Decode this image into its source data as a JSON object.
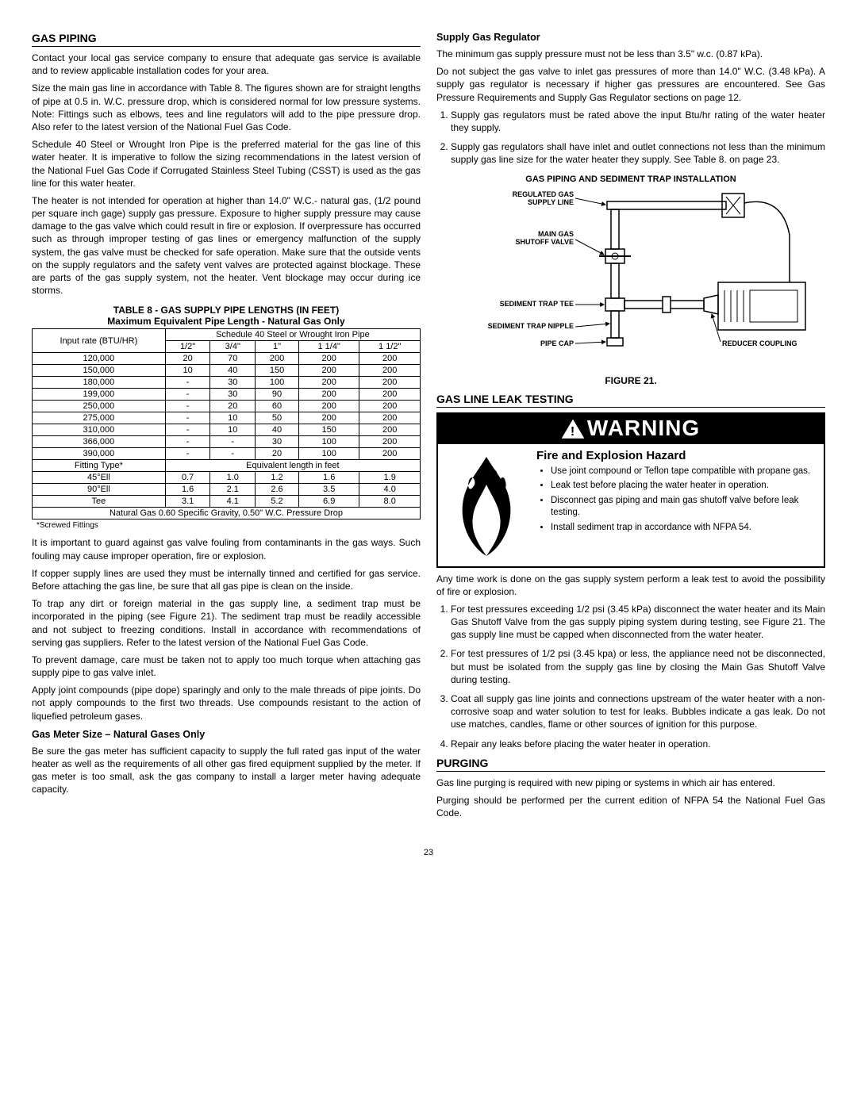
{
  "left": {
    "h_gas_piping": "GAS PIPING",
    "p1": "Contact your local gas service company to ensure that adequate gas service is available and to review applicable installation codes for your area.",
    "p2": "Size the main gas line in accordance with Table 8. The figures shown are for straight lengths of pipe at 0.5 in. W.C. pressure drop, which is considered normal for low pressure systems. Note: Fittings such as elbows, tees and line regulators will add to the pipe pressure drop. Also refer to the latest version of the National Fuel Gas Code.",
    "p3": "Schedule 40 Steel or Wrought Iron Pipe is the preferred material for the gas line of this water heater. It is imperative to follow the sizing recommendations in the latest version of the National Fuel Gas Code if Corrugated Stainless Steel Tubing (CSST) is used as the gas line for this water heater.",
    "p4": "The heater is not intended for operation at higher than 14.0\" W.C.- natural gas, (1/2 pound per square inch gage) supply gas pressure. Exposure to higher supply pressure may cause damage to the gas valve which could result in fire or explosion. If overpressure has occurred such as through improper testing of gas lines or emergency malfunction of the supply system, the gas valve must be checked for safe operation. Make sure that the outside vents on the supply regulators and the safety vent valves are protected against blockage. These are parts of the gas supply system, not the heater. Vent blockage may occur during ice storms.",
    "table_title1": "TABLE 8 - GAS SUPPLY PIPE LENGTHS (IN FEET)",
    "table_title2": "Maximum Equivalent Pipe Length - Natural Gas Only",
    "table": {
      "header1_left": "Input rate (BTU/HR)",
      "header1_right": "Schedule 40 Steel or Wrought Iron Pipe",
      "cols": [
        "1/2\"",
        "3/4\"",
        "1\"",
        "1 1/4\"",
        "1 1/2\""
      ],
      "rows": [
        [
          "120,000",
          "20",
          "70",
          "200",
          "200",
          "200"
        ],
        [
          "150,000",
          "10",
          "40",
          "150",
          "200",
          "200"
        ],
        [
          "180,000",
          "-",
          "30",
          "100",
          "200",
          "200"
        ],
        [
          "199,000",
          "-",
          "30",
          "90",
          "200",
          "200"
        ],
        [
          "250,000",
          "-",
          "20",
          "60",
          "200",
          "200"
        ],
        [
          "275,000",
          "-",
          "10",
          "50",
          "200",
          "200"
        ],
        [
          "310,000",
          "-",
          "10",
          "40",
          "150",
          "200"
        ],
        [
          "366,000",
          "-",
          "-",
          "30",
          "100",
          "200"
        ],
        [
          "390,000",
          "-",
          "-",
          "20",
          "100",
          "200"
        ]
      ],
      "fitting_header_left": "Fitting Type*",
      "fitting_header_right": "Equivalent length in feet",
      "fitting_rows": [
        [
          "45°Ell",
          "0.7",
          "1.0",
          "1.2",
          "1.6",
          "1.9"
        ],
        [
          "90°Ell",
          "1.6",
          "2.1",
          "2.6",
          "3.5",
          "4.0"
        ],
        [
          "Tee",
          "3.1",
          "4.1",
          "5.2",
          "6.9",
          "8.0"
        ]
      ],
      "footer": "Natural Gas 0.60 Specific Gravity, 0.50\" W.C. Pressure Drop"
    },
    "footnote": "*Screwed Fittings",
    "p5": "It is important to guard against gas valve fouling from contaminants in the gas ways. Such fouling may cause improper operation, fire or explosion.",
    "p6": "If copper supply lines are used they must be internally tinned and certified for gas service. Before attaching the gas line, be sure that all gas pipe is clean on the inside.",
    "p7": "To trap any dirt or foreign material in the gas supply line, a sediment trap must be incorporated in the piping (see Figure 21). The sediment trap must be readily accessible and not subject to freezing conditions. Install in accordance with recommendations of serving gas suppliers. Refer to the latest version of the National Fuel Gas Code.",
    "p8": "To prevent damage, care must be taken not to apply too much torque when attaching gas supply pipe to gas valve inlet.",
    "p9": "Apply joint compounds (pipe dope) sparingly and only to the male threads of pipe joints. Do not apply compounds to the first two threads. Use compounds resistant to the action of liquefied petroleum gases.",
    "h_gas_meter": "Gas Meter Size – Natural Gases Only",
    "p10": "Be sure the gas meter has sufficient capacity to supply the full rated gas input of the water heater as well as the requirements of all other gas fired equipment supplied by the meter. If gas meter is too small, ask the gas company to install a larger meter having adequate capacity."
  },
  "right": {
    "h_supply": "Supply Gas Regulator",
    "p1": "The minimum gas supply pressure must not be less than 3.5\" w.c. (0.87 kPa).",
    "p2": "Do not subject the gas valve to inlet gas pressures of more than 14.0\" W.C. (3.48 kPa). A supply gas regulator is necessary if higher gas pressures are encountered. See Gas Pressure Requirements and Supply Gas Regulator sections on page 12.",
    "ol1": {
      "i1": "Supply gas regulators must be rated above the input Btu/hr rating of the water heater they supply.",
      "i2": "Supply gas regulators shall have inlet and outlet connections not less than the minimum supply gas line size for the water heater they supply. See Table 8. on page 23."
    },
    "fig_title": "GAS PIPING AND SEDIMENT TRAP INSTALLATION",
    "diagram_labels": {
      "reg_gas": "REGULATED GAS",
      "supply": "SUPPLY LINE",
      "main_gas": "MAIN GAS",
      "shutoff": "SHUTOFF VALVE",
      "sed_tee": "SEDIMENT TRAP TEE",
      "sed_nipple": "SEDIMENT TRAP NIPPLE",
      "pipe_cap": "PIPE CAP",
      "reducer": "REDUCER COUPLING"
    },
    "fig_caption": "FIGURE 21.",
    "h_leak": "GAS LINE LEAK TESTING",
    "warning": {
      "title": "WARNING",
      "subtitle": "Fire and Explosion Hazard",
      "items": {
        "i1": "Use joint compound or Teflon tape compatible with propane gas.",
        "i2": "Leak test before placing the water heater in operation.",
        "i3": "Disconnect gas piping and main gas shutoff valve before leak testing.",
        "i4": "Install sediment trap in accordance with NFPA 54."
      }
    },
    "p3": "Any time work is done on the gas supply system perform a leak test to avoid the possibility of fire or explosion.",
    "ol2": {
      "i1": "For test pressures exceeding 1/2 psi (3.45 kPa) disconnect the water heater and its Main Gas Shutoff Valve from the gas supply piping system during testing, see Figure 21. The gas supply line must be capped when disconnected from the water heater.",
      "i2": "For test pressures of 1/2 psi (3.45 kpa) or less, the appliance need not be disconnected, but must be isolated from the supply gas line by closing the Main Gas Shutoff Valve during testing.",
      "i3": "Coat all supply gas line joints and connections upstream of the water heater with a non-corrosive soap and water solution to test for leaks. Bubbles indicate a gas leak. Do not use matches, candles, flame or other sources of ignition for this purpose.",
      "i4": "Repair any leaks before placing the water heater in operation."
    },
    "h_purging": "PURGING",
    "p4": "Gas line purging is required with new piping or systems in which air has entered.",
    "p5": "Purging should be performed per the current edition of NFPA 54 the National Fuel Gas Code."
  },
  "page_number": "23"
}
